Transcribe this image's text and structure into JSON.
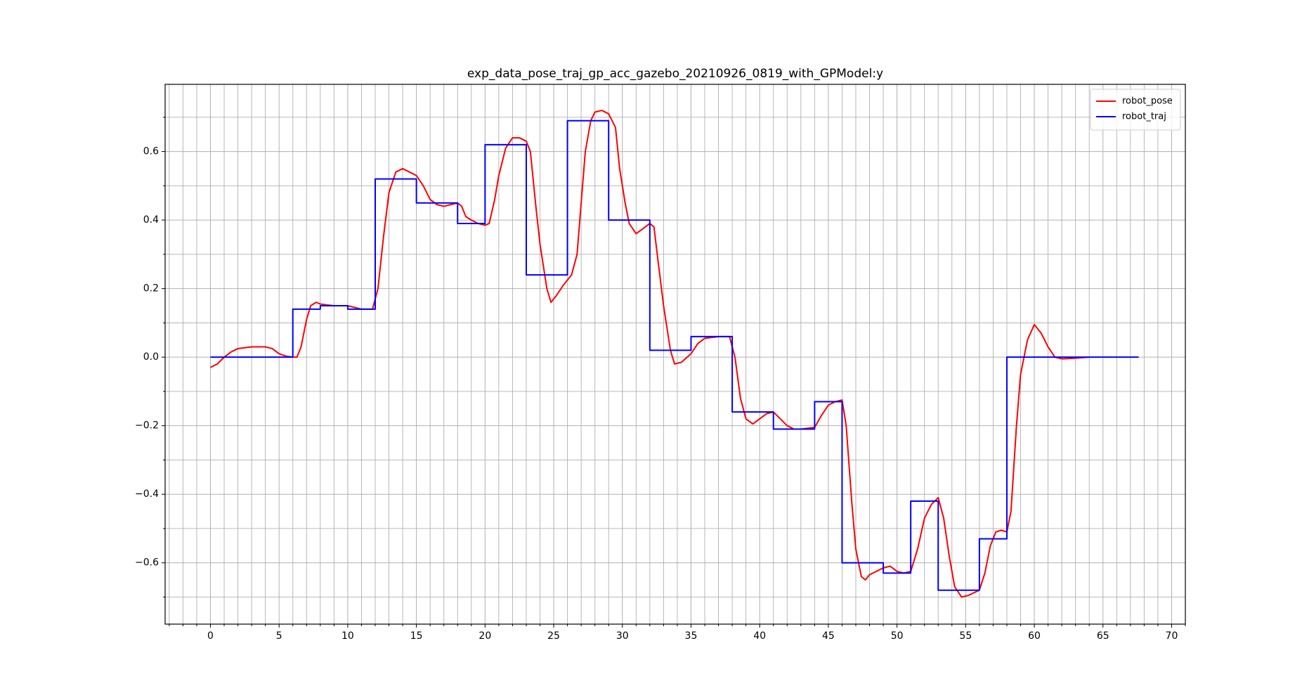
{
  "chart_data": {
    "type": "line",
    "title": "exp_data_pose_traj_gp_acc_gazebo_20210926_0819_with_GPModel:y",
    "xlim": [
      -3.3,
      71.0
    ],
    "ylim": [
      -0.779,
      0.796
    ],
    "xticks": [
      0,
      5,
      10,
      15,
      20,
      25,
      30,
      35,
      40,
      45,
      50,
      55,
      60,
      65,
      70
    ],
    "yticks": [
      {
        "value": -0.6,
        "label": "−0.6"
      },
      {
        "value": -0.4,
        "label": "−0.4"
      },
      {
        "value": -0.2,
        "label": "−0.2"
      },
      {
        "value": 0,
        "label": "0.0"
      },
      0.2,
      0.4,
      0.6
    ],
    "xminorticks": [
      -3,
      -2,
      -1,
      1,
      2,
      3,
      4,
      6,
      7,
      8,
      9,
      11,
      12,
      13,
      14,
      16,
      17,
      18,
      19,
      21,
      22,
      23,
      24,
      26,
      27,
      28,
      29,
      31,
      32,
      33,
      34,
      36,
      37,
      38,
      39,
      41,
      42,
      43,
      44,
      46,
      47,
      48,
      49,
      51,
      52,
      53,
      54,
      56,
      57,
      58,
      59,
      61,
      62,
      63,
      64,
      66,
      67,
      68,
      69,
      71
    ],
    "yminorticks": [
      -0.7,
      -0.5,
      -0.3,
      -0.1,
      0.1,
      0.3,
      0.5,
      0.7
    ],
    "grid": true,
    "legend": "upper right",
    "series": [
      {
        "name": "robot_pose",
        "color": "#ff0000",
        "x": [
          0,
          0.5,
          1,
          1.5,
          2,
          3,
          4,
          4.5,
          5,
          5.5,
          6,
          6.3,
          6.6,
          7,
          7.3,
          7.7,
          8,
          9,
          10,
          11,
          11.8,
          12.2,
          12.6,
          13,
          13.5,
          14,
          14.5,
          15,
          15.5,
          16,
          16.5,
          17,
          17.5,
          18,
          18.3,
          18.6,
          19,
          19.5,
          20,
          20.3,
          20.7,
          21,
          21.5,
          22,
          22.5,
          23,
          23.3,
          23.7,
          24,
          24.5,
          24.8,
          25.2,
          25.7,
          26.3,
          26.7,
          27,
          27.3,
          27.7,
          28,
          28.5,
          29,
          29.5,
          29.8,
          30.2,
          30.5,
          31,
          31.5,
          32,
          32.3,
          32.6,
          33,
          33.5,
          33.8,
          34.3,
          35,
          35.5,
          36,
          37,
          37.8,
          38.2,
          38.6,
          39,
          39.5,
          40,
          40.5,
          41,
          41.5,
          42,
          42.5,
          43,
          44,
          44.5,
          45,
          45.5,
          46,
          46.3,
          46.7,
          47,
          47.4,
          47.7,
          48,
          48.5,
          49,
          49.5,
          50,
          50.5,
          51,
          51.5,
          52,
          52.5,
          53,
          53.4,
          53.8,
          54.2,
          54.7,
          55.2,
          56,
          56.4,
          56.8,
          57.2,
          57.6,
          58,
          58.3,
          58.7,
          59,
          59.5,
          60,
          60.5,
          61,
          61.5,
          62,
          63,
          64
        ],
        "values": [
          -0.03,
          -0.02,
          0,
          0.015,
          0.025,
          0.03,
          0.03,
          0.025,
          0.01,
          0.003,
          0,
          0,
          0.03,
          0.11,
          0.15,
          0.16,
          0.155,
          0.15,
          0.15,
          0.14,
          0.14,
          0.2,
          0.35,
          0.48,
          0.54,
          0.55,
          0.54,
          0.53,
          0.5,
          0.46,
          0.445,
          0.44,
          0.445,
          0.45,
          0.44,
          0.41,
          0.4,
          0.39,
          0.385,
          0.39,
          0.46,
          0.53,
          0.61,
          0.64,
          0.64,
          0.63,
          0.6,
          0.44,
          0.33,
          0.2,
          0.16,
          0.18,
          0.21,
          0.24,
          0.3,
          0.45,
          0.6,
          0.69,
          0.715,
          0.72,
          0.71,
          0.67,
          0.55,
          0.45,
          0.39,
          0.36,
          0.375,
          0.39,
          0.38,
          0.28,
          0.15,
          0.02,
          -0.02,
          -0.015,
          0.01,
          0.04,
          0.055,
          0.06,
          0.06,
          0,
          -0.12,
          -0.18,
          -0.195,
          -0.18,
          -0.165,
          -0.16,
          -0.18,
          -0.2,
          -0.21,
          -0.21,
          -0.205,
          -0.17,
          -0.14,
          -0.13,
          -0.125,
          -0.2,
          -0.42,
          -0.56,
          -0.64,
          -0.65,
          -0.635,
          -0.625,
          -0.615,
          -0.61,
          -0.625,
          -0.63,
          -0.625,
          -0.56,
          -0.47,
          -0.43,
          -0.41,
          -0.47,
          -0.58,
          -0.67,
          -0.7,
          -0.695,
          -0.68,
          -0.63,
          -0.55,
          -0.51,
          -0.505,
          -0.51,
          -0.45,
          -0.2,
          -0.05,
          0.05,
          0.095,
          0.07,
          0.03,
          0,
          -0.005,
          -0.003,
          0
        ]
      },
      {
        "name": "robot_traj",
        "color": "#0000ff",
        "x": [
          0,
          6,
          6,
          8,
          8,
          10,
          10,
          12,
          12,
          15,
          15,
          18,
          18,
          20,
          20,
          23,
          23,
          26,
          26,
          29,
          29,
          32,
          32,
          35,
          35,
          38,
          38,
          41,
          41,
          44,
          44,
          46,
          46,
          49,
          49,
          51,
          51,
          53,
          53,
          56,
          56,
          58,
          58,
          67.6
        ],
        "values": [
          0,
          0,
          0.14,
          0.14,
          0.15,
          0.15,
          0.14,
          0.14,
          0.52,
          0.52,
          0.45,
          0.45,
          0.39,
          0.39,
          0.62,
          0.62,
          0.24,
          0.24,
          0.69,
          0.69,
          0.4,
          0.4,
          0.02,
          0.02,
          0.06,
          0.06,
          -0.16,
          -0.16,
          -0.21,
          -0.21,
          -0.13,
          -0.13,
          -0.6,
          -0.6,
          -0.63,
          -0.63,
          -0.42,
          -0.42,
          -0.68,
          -0.68,
          -0.53,
          -0.53,
          0,
          0
        ]
      }
    ]
  }
}
